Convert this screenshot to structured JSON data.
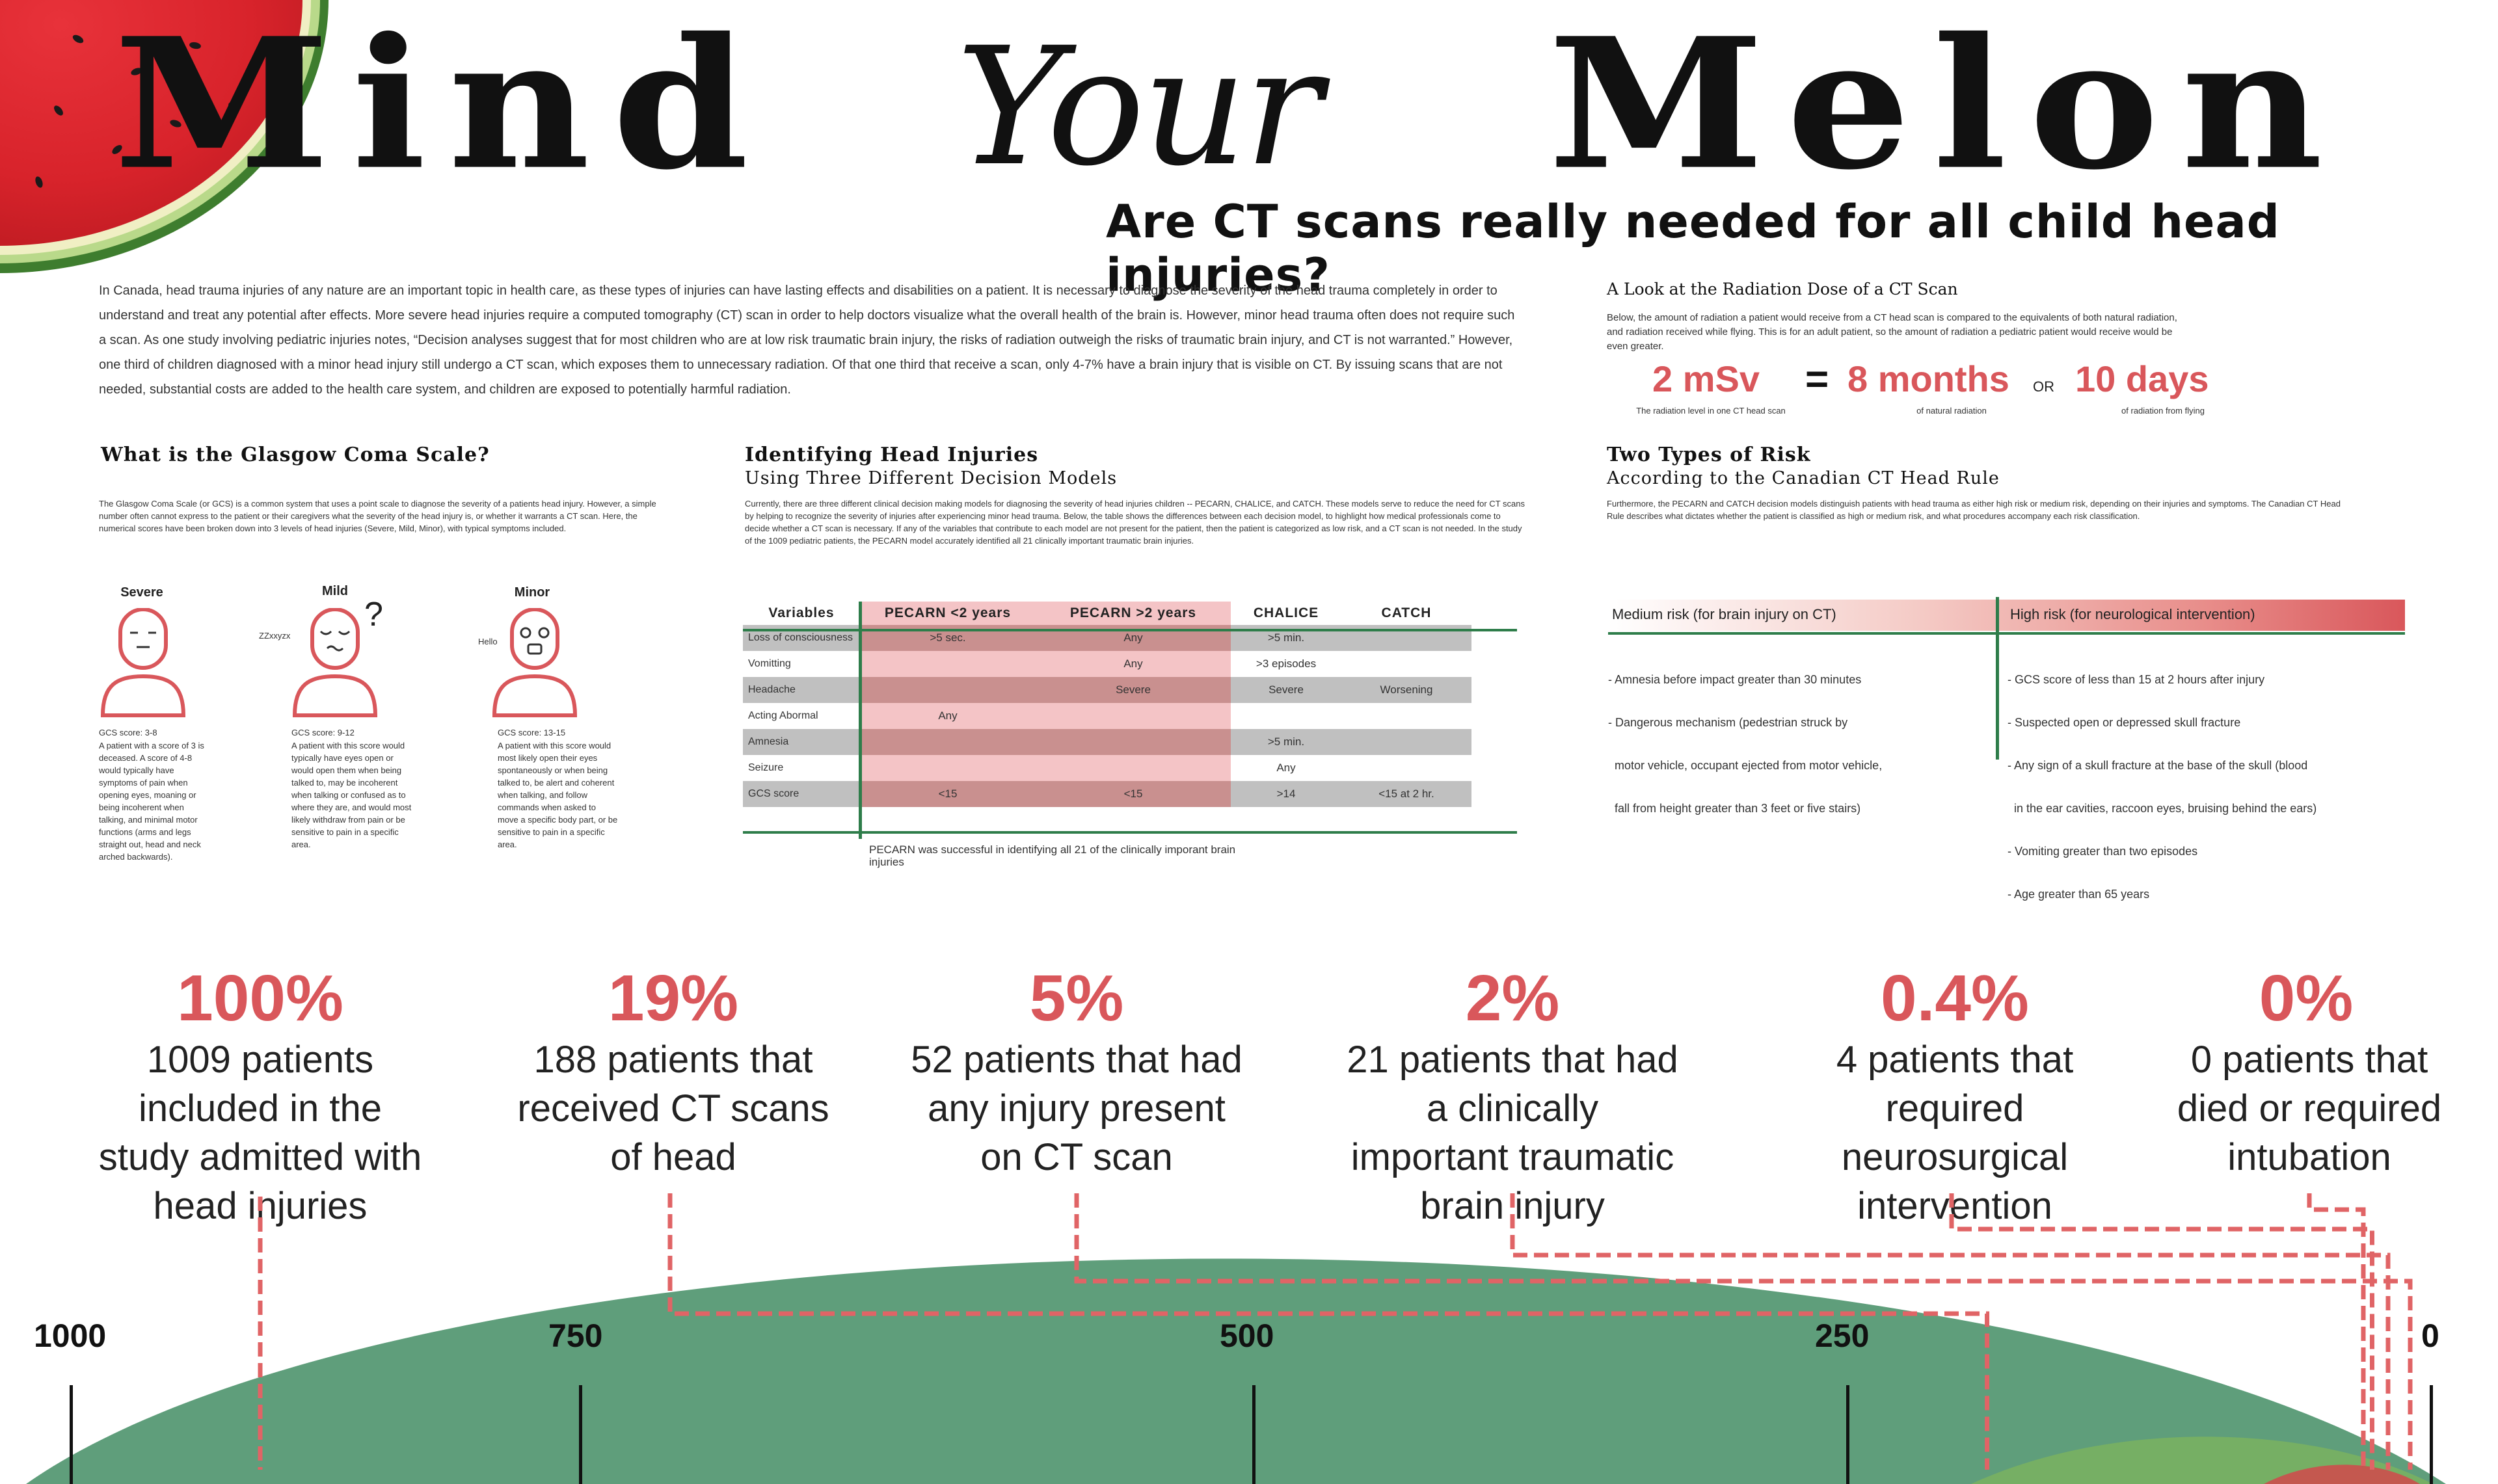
{
  "title": {
    "word1": "Mind",
    "word2": "Your",
    "word3": "Melon",
    "subtitle": "Are CT scans really needed for all child head injuries?"
  },
  "intro": "In Canada, head trauma injuries of any nature are an important topic in health care, as these types of injuries can have lasting effects and disabilities on a patient. It is necessary to diagnose the severity of the head trauma completely in order to understand and treat any potential after effects. More severe head injuries require a computed tomography (CT) scan in order to help doctors visualize what the overall health of the brain is. However, minor head trauma often does not require such a scan. As one study involving pediatric injuries notes, “Decision analyses suggest that for most children who are at low risk traumatic brain injury, the risks of radiation outweigh the risks of traumatic brain injury, and CT is not warranted.” However, one third of children diagnosed with a minor head injury still undergo a CT scan, which exposes them to unnecessary radiation. Of that one third that receive a scan, only 4-7% have a brain injury that is visible on CT. By issuing scans that are not needed, substantial costs are added to the health care system, and children are exposed to potentially harmful radiation.",
  "radiation": {
    "heading": "A Look at the Radiation Dose of a CT Scan",
    "text": "Below, the amount of radiation a patient would receive from a CT head scan is compared to the equivalents of both natural radiation, and radiation received while flying. This is for an adult patient, so the amount of radiation a pediatric patient would receive would be even greater.",
    "value1": "2 mSv",
    "caption1": "The radiation level in one CT head scan",
    "equals": "=",
    "value2": "8 months",
    "caption2": "of natural radiation",
    "or": "OR",
    "value3": "10 days",
    "caption3": "of radiation from flying"
  },
  "gcs": {
    "heading": "What is the Glasgow Coma Scale?",
    "text": "The Glasgow Coma Scale (or GCS) is a common system that uses a point scale to diagnose the severity of a patients head injury. However, a simple number often cannot express to the patient or their caregivers what the severity of the head injury is, or whether it warrants a CT scan. Here, the numerical scores have been broken down into 3 levels of head injuries (Severe, Mild, Minor), with typical symptoms included.",
    "levels": [
      {
        "label": "Severe",
        "bubble": "",
        "score": "GCS score: 3-8",
        "desc": "A patient with a score of 3 is deceased. A score of 4-8 would typically have symptoms of pain when opening eyes, moaning or being incoherent when talking, and minimal motor functions (arms and legs straight out, head and neck arched backwards)."
      },
      {
        "label": "Mild",
        "bubble": "ZZxxyzx",
        "mark": "?",
        "score": "GCS score: 9-12",
        "desc": "A patient with this score would typically have eyes open or would open them when being talked to, may be incoherent when talking or confused as to where they are, and would most likely withdraw from pain or be sensitive to pain in a specific area."
      },
      {
        "label": "Minor",
        "bubble": "Hello",
        "score": "GCS score: 13-15",
        "desc": "A patient with this score would most likely open their eyes spontaneously or when being talked to, be alert and coherent when talking, and follow commands when asked to move a specific body part, or be sensitive to pain in a specific area."
      }
    ]
  },
  "models": {
    "heading": "Identifying Head Injuries",
    "subheading": "Using Three Different Decision Models",
    "text": "Currently, there are three different clinical decision making models for diagnosing the severity of head injuries children -- PECARN, CHALICE, and CATCH. These models serve to reduce the need for CT scans by helping to recognize the severity of injuries after experiencing minor head trauma. Below, the table shows the differences between each decision model, to highlight how medical professionals come to decide whether a CT scan is necessary. If any of the variables that contribute to each model are not present for the patient, then the patient is categorized as low risk, and a CT scan is not needed. In the study of the 1009 pediatric patients, the PECARN model accurately identified all 21 clinically important traumatic brain injuries.",
    "columns": [
      "Variables",
      "PECARN <2 years",
      "PECARN >2 years",
      "CHALICE",
      "CATCH"
    ],
    "rows": [
      [
        "Loss of consciousness",
        ">5 sec.",
        "Any",
        ">5 min.",
        ""
      ],
      [
        "Vomitting",
        "",
        "Any",
        ">3 episodes",
        ""
      ],
      [
        "Headache",
        "",
        "Severe",
        "Severe",
        "Worsening"
      ],
      [
        "Acting Abormal",
        "Any",
        "",
        "",
        ""
      ],
      [
        "Amnesia",
        "",
        "",
        ">5 min.",
        ""
      ],
      [
        "Seizure",
        "",
        "",
        "Any",
        ""
      ],
      [
        "GCS score",
        "<15",
        "<15",
        ">14",
        "<15 at 2 hr."
      ]
    ],
    "note": "PECARN was successful in identifying all 21 of the clinically imporant brain injuries"
  },
  "risk": {
    "heading": "Two Types of Risk",
    "subheading": "According to the Canadian CT Head Rule",
    "text": "Furthermore, the PECARN and CATCH decision models distinguish patients with head trauma as either high risk or medium risk, depending on their injuries and symptoms. The Canadian CT Head Rule describes what dictates whether the patient is classified as high or medium risk, and what procedures accompany each risk classification.",
    "medium_label": "Medium risk (for brain injury on CT)",
    "high_label": "High risk (for neurological intervention)",
    "medium_items": [
      "- Amnesia before impact greater than 30 minutes",
      "- Dangerous mechanism (pedestrian struck by",
      "  motor vehicle, occupant ejected from motor vehicle,",
      "  fall from height greater than 3 feet or five stairs)"
    ],
    "high_items": [
      "- GCS score of less than 15 at 2 hours after injury",
      "- Suspected open or depressed skull fracture",
      "- Any sign of a skull fracture at the base of the skull (blood",
      "  in the ear cavities, raccoon eyes, bruising behind the ears)",
      "- Vomiting greater than two episodes",
      "- Age greater than 65 years"
    ]
  },
  "stats": [
    {
      "pct": "100%",
      "desc": "1009 patients included in the study admitted with head injuries",
      "count": 1009
    },
    {
      "pct": "19%",
      "desc": "188 patients that received CT scans of  head",
      "count": 188
    },
    {
      "pct": "5%",
      "desc": "52 patients that had any injury present on CT scan",
      "count": 52
    },
    {
      "pct": "2%",
      "desc": "21 patients that had a clinically important traumatic brain injury",
      "count": 21
    },
    {
      "pct": "0.4%",
      "desc": "4 patients that required neurosurgical intervention",
      "count": 4
    },
    {
      "pct": "0%",
      "desc": "0 patients that died or required intubation",
      "count": 0
    }
  ],
  "axis": {
    "ticks": [
      "1000",
      "750",
      "500",
      "250",
      "0"
    ],
    "tick_values": [
      1000,
      750,
      500,
      250,
      0
    ]
  },
  "colors": {
    "accent": "#d9575b",
    "melon_green": "#5f9e7b",
    "table_green": "#2e7d4a"
  }
}
